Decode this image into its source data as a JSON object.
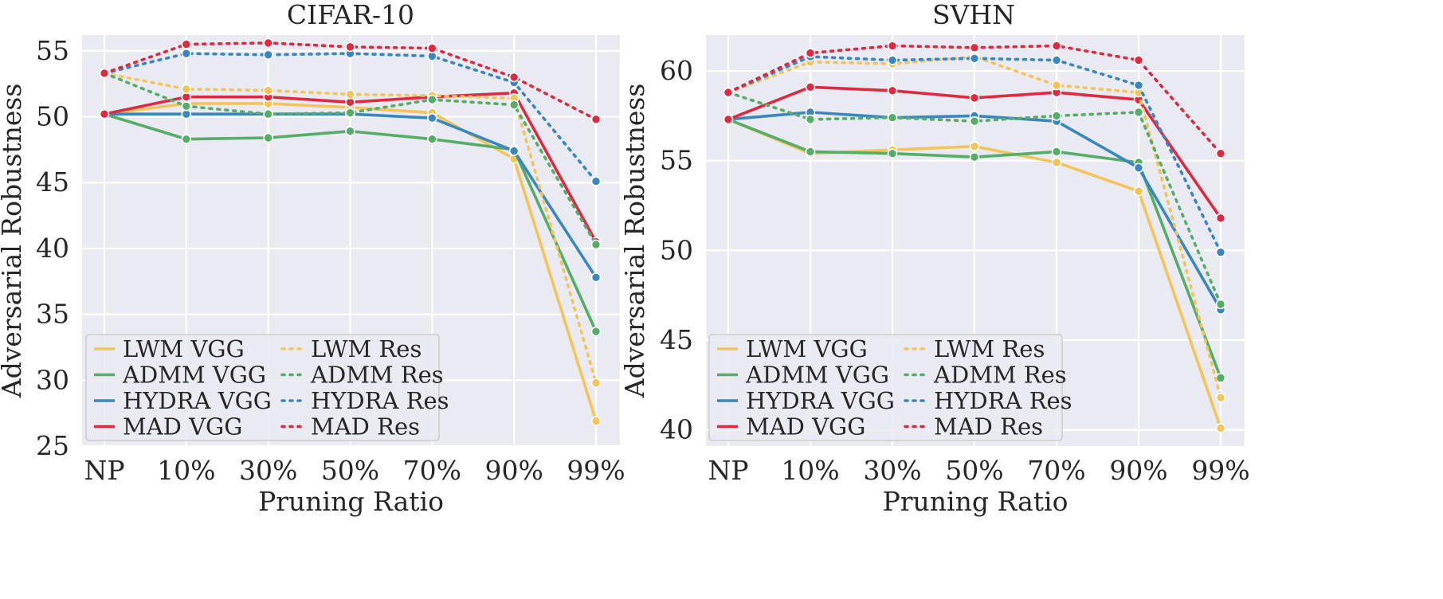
{
  "chart_data": [
    {
      "type": "line",
      "title": "CIFAR-10",
      "xlabel": "Pruning Ratio",
      "ylabel": "Adversarial Robustness",
      "categories": [
        "NP",
        "10%",
        "30%",
        "50%",
        "70%",
        "90%",
        "99%"
      ],
      "ylim": [
        25,
        56.2
      ],
      "yticks": [
        25,
        30,
        35,
        40,
        45,
        50,
        55
      ],
      "grid": true,
      "legend_position": "lower-left",
      "series": [
        {
          "name": "LWM VGG",
          "color": "#f2c45a",
          "style": "solid",
          "values": [
            50.2,
            51.0,
            51.0,
            50.7,
            50.3,
            46.8,
            26.9
          ]
        },
        {
          "name": "ADMM VGG",
          "color": "#55ad68",
          "style": "solid",
          "values": [
            50.2,
            48.3,
            48.4,
            48.9,
            48.3,
            47.5,
            33.7
          ]
        },
        {
          "name": "HYDRA VGG",
          "color": "#3a87c0",
          "style": "solid",
          "values": [
            50.2,
            50.2,
            50.2,
            50.2,
            49.9,
            47.4,
            37.8
          ]
        },
        {
          "name": "MAD VGG",
          "color": "#dc2a40",
          "style": "solid",
          "values": [
            50.2,
            51.5,
            51.5,
            51.1,
            51.5,
            51.8,
            40.5
          ]
        },
        {
          "name": "LWM Res",
          "color": "#f2c45a",
          "style": "dotted",
          "values": [
            53.3,
            52.1,
            52.0,
            51.7,
            51.6,
            51.4,
            29.8
          ]
        },
        {
          "name": "ADMM Res",
          "color": "#55ad68",
          "style": "dotted",
          "values": [
            53.3,
            50.8,
            50.2,
            50.3,
            51.3,
            50.9,
            40.3
          ]
        },
        {
          "name": "HYDRA Res",
          "color": "#3a87c0",
          "style": "dotted",
          "values": [
            53.3,
            54.8,
            54.7,
            54.8,
            54.6,
            52.6,
            45.1
          ]
        },
        {
          "name": "MAD Res",
          "color": "#dc2a40",
          "style": "dotted",
          "values": [
            53.3,
            55.5,
            55.6,
            55.3,
            55.2,
            53.0,
            49.8
          ]
        }
      ]
    },
    {
      "type": "line",
      "title": "SVHN",
      "xlabel": "Pruning Ratio",
      "ylabel": "Adversarial Robustness",
      "categories": [
        "NP",
        "10%",
        "30%",
        "50%",
        "70%",
        "90%",
        "99%"
      ],
      "ylim": [
        39.1,
        62.0
      ],
      "yticks": [
        40,
        45,
        50,
        55,
        60
      ],
      "grid": true,
      "legend_position": "lower-left",
      "series": [
        {
          "name": "LWM VGG",
          "color": "#f2c45a",
          "style": "solid",
          "values": [
            57.3,
            55.4,
            55.6,
            55.8,
            54.9,
            53.3,
            40.1
          ]
        },
        {
          "name": "ADMM VGG",
          "color": "#55ad68",
          "style": "solid",
          "values": [
            57.3,
            55.5,
            55.4,
            55.2,
            55.5,
            54.9,
            42.9
          ]
        },
        {
          "name": "HYDRA VGG",
          "color": "#3a87c0",
          "style": "solid",
          "values": [
            57.3,
            57.7,
            57.4,
            57.5,
            57.2,
            54.6,
            46.7
          ]
        },
        {
          "name": "MAD VGG",
          "color": "#dc2a40",
          "style": "solid",
          "values": [
            57.3,
            59.1,
            58.9,
            58.5,
            58.8,
            58.4,
            51.8
          ]
        },
        {
          "name": "LWM Res",
          "color": "#f2c45a",
          "style": "dotted",
          "values": [
            58.8,
            60.5,
            60.4,
            60.8,
            59.2,
            58.8,
            41.8
          ]
        },
        {
          "name": "ADMM Res",
          "color": "#55ad68",
          "style": "dotted",
          "values": [
            58.8,
            57.3,
            57.4,
            57.2,
            57.5,
            57.7,
            47.0
          ]
        },
        {
          "name": "HYDRA Res",
          "color": "#3a87c0",
          "style": "dotted",
          "values": [
            58.8,
            60.8,
            60.6,
            60.7,
            60.6,
            59.2,
            49.9
          ]
        },
        {
          "name": "MAD Res",
          "color": "#dc2a40",
          "style": "dotted",
          "values": [
            58.8,
            61.0,
            61.4,
            61.3,
            61.4,
            60.6,
            55.4
          ]
        }
      ]
    }
  ]
}
